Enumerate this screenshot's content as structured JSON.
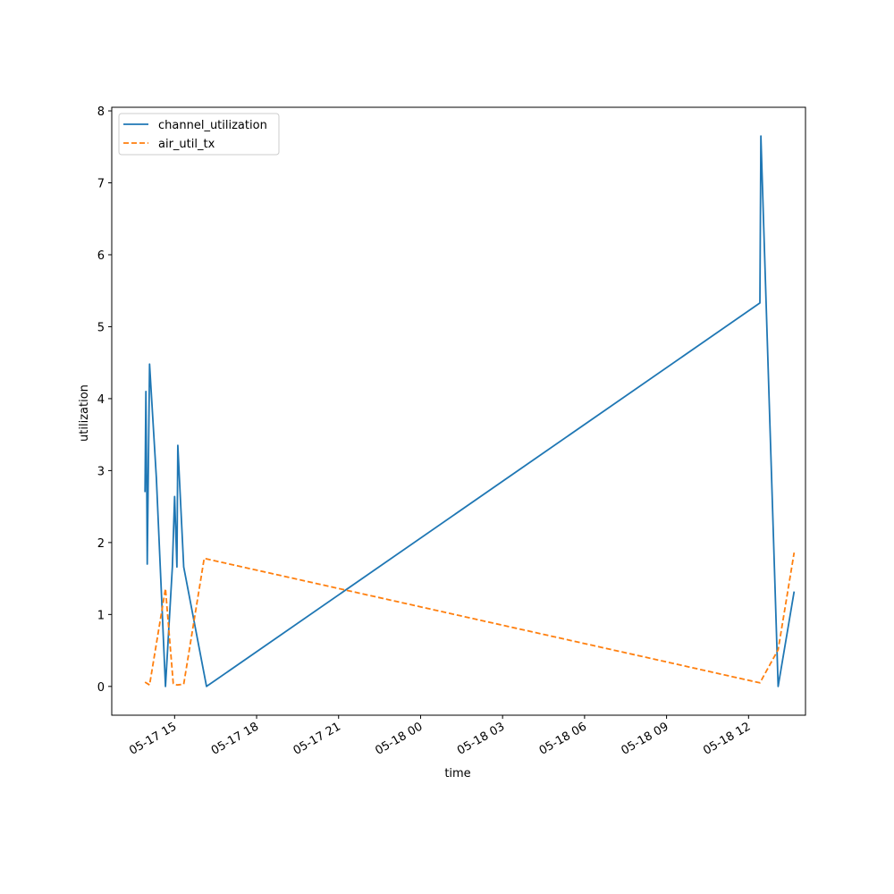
{
  "chart_data": {
    "type": "line",
    "title": "",
    "xlabel": "time",
    "ylabel": "utilization",
    "x_tick_labels": [
      "05-17 15",
      "05-17 18",
      "05-17 21",
      "05-18 00",
      "05-18 03",
      "05-18 06",
      "05-18 09",
      "05-18 12"
    ],
    "x_ticks": [
      "2024-05-17 15:00",
      "2024-05-17 18:00",
      "2024-05-17 21:00",
      "2024-05-18 00:00",
      "2024-05-18 03:00",
      "2024-05-18 06:00",
      "2024-05-18 09:00",
      "2024-05-18 12:00"
    ],
    "y_ticks": [
      "0",
      "1",
      "2",
      "3",
      "4",
      "5",
      "6",
      "7",
      "8"
    ],
    "xlim": [
      "2024-05-17 12:42",
      "2024-05-18 14:05"
    ],
    "ylim": [
      -0.4,
      8.05
    ],
    "grid": false,
    "legend_position": "top-left",
    "series": [
      {
        "name": "channel_utilization",
        "color": "#1f77b4",
        "style": "solid",
        "points": [
          [
            "2024-05-17 13:55",
            2.7
          ],
          [
            "2024-05-17 13:57",
            4.1
          ],
          [
            "2024-05-17 13:59",
            2.7
          ],
          [
            "2024-05-17 14:00",
            1.7
          ],
          [
            "2024-05-17 14:05",
            4.48
          ],
          [
            "2024-05-17 14:20",
            2.9
          ],
          [
            "2024-05-17 14:40",
            0.0
          ],
          [
            "2024-05-17 14:55",
            1.66
          ],
          [
            "2024-05-17 15:00",
            2.64
          ],
          [
            "2024-05-17 15:05",
            1.66
          ],
          [
            "2024-05-17 15:07",
            3.35
          ],
          [
            "2024-05-17 15:20",
            1.66
          ],
          [
            "2024-05-17 16:10",
            0.0
          ],
          [
            "2024-05-18 12:25",
            5.33
          ],
          [
            "2024-05-18 12:27",
            7.65
          ],
          [
            "2024-05-18 13:05",
            0.0
          ],
          [
            "2024-05-18 13:40",
            1.32
          ]
        ]
      },
      {
        "name": "air_util_tx",
        "color": "#ff7f0e",
        "style": "dashed",
        "points": [
          [
            "2024-05-17 13:55",
            0.06
          ],
          [
            "2024-05-17 14:05",
            0.02
          ],
          [
            "2024-05-17 14:40",
            1.36
          ],
          [
            "2024-05-17 14:57",
            0.04
          ],
          [
            "2024-05-17 15:05",
            0.02
          ],
          [
            "2024-05-17 15:20",
            0.03
          ],
          [
            "2024-05-17 16:05",
            1.78
          ],
          [
            "2024-05-18 12:25",
            0.05
          ],
          [
            "2024-05-18 13:05",
            0.51
          ],
          [
            "2024-05-18 13:40",
            1.86
          ]
        ]
      }
    ]
  }
}
